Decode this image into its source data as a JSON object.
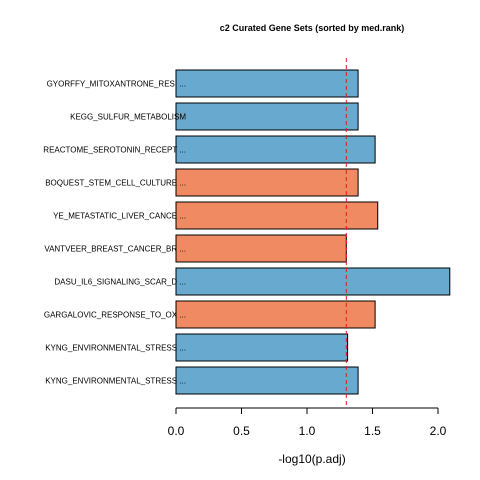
{
  "chart_data": {
    "type": "bar",
    "orientation": "horizontal",
    "title": "c2 Curated Gene Sets (sorted by med.rank)",
    "xlabel": "-log10(p.adj)",
    "ylabel": "",
    "xlim": [
      0,
      2.1
    ],
    "xticks": [
      "0.0",
      "0.5",
      "1.0",
      "1.5",
      "2.0"
    ],
    "threshold": 1.3,
    "colors": {
      "blue": "#67a9cf",
      "orange": "#ef8a62",
      "threshold": "#e31a1c"
    },
    "categories": [
      "GYORFFY_MITOXANTRONE_RESI ...",
      "KEGG_SULFUR_METABOLISM",
      "REACTOME_SEROTONIN_RECEPT ...",
      "BOQUEST_STEM_CELL_CULTURE ...",
      "YE_METASTATIC_LIVER_CANCE ...",
      "VANTVEER_BREAST_CANCER_BR ...",
      "DASU_IL6_SIGNALING_SCAR_D ...",
      "GARGALOVIC_RESPONSE_TO_OX ...",
      "KYNG_ENVIRONMENTAL_STRESS ...",
      "KYNG_ENVIRONMENTAL_STRESS ..."
    ],
    "values": [
      1.39,
      1.39,
      1.52,
      1.39,
      1.54,
      1.3,
      2.09,
      1.52,
      1.31,
      1.39
    ],
    "bar_colors": [
      "blue",
      "blue",
      "blue",
      "orange",
      "orange",
      "orange",
      "blue",
      "orange",
      "blue",
      "blue"
    ]
  }
}
